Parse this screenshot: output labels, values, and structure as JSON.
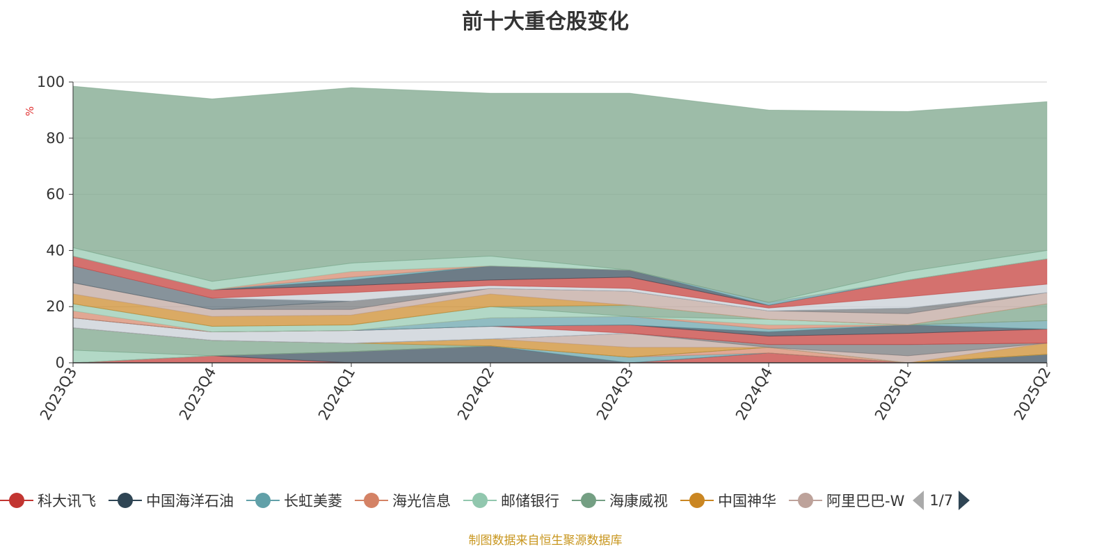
{
  "title": "前十大重仓股变化",
  "footer": "制图数据来自恒生聚源数据库",
  "legend_page": "1/7",
  "chart_data": {
    "type": "area",
    "stacked": true,
    "title": "前十大重仓股变化",
    "ylabel": "%",
    "ylim": [
      0,
      100
    ],
    "yticks": [
      "0",
      "20",
      "40",
      "60",
      "80",
      "100"
    ],
    "categories": [
      "2023Q3",
      "2023Q4",
      "2024Q1",
      "2024Q2",
      "2024Q3",
      "2024Q4",
      "2025Q1",
      "2025Q2"
    ],
    "legend_position": "bottom",
    "grid": true,
    "colors": [
      "#c23531",
      "#2f4554",
      "#61a0a8",
      "#d48265",
      "#91c7ae",
      "#749f83",
      "#ca8622",
      "#bda29a",
      "#6e7074",
      "#546570",
      "#c4ccd3"
    ],
    "series": [
      {
        "name": "科大讯飞",
        "values": [
          0,
          2.5,
          0,
          0,
          0,
          3.5,
          0,
          0
        ]
      },
      {
        "name": "中国海洋石油",
        "values": [
          0,
          0,
          4,
          6,
          0,
          0,
          0,
          3
        ]
      },
      {
        "name": "长虹美菱",
        "values": [
          0,
          0,
          0,
          0,
          2,
          0,
          0,
          0
        ]
      },
      {
        "name": "海光信息",
        "values": [
          0,
          0,
          0,
          0,
          0,
          2,
          0,
          0
        ]
      },
      {
        "name": "邮储银行",
        "values": [
          4.5,
          0,
          0,
          0,
          0,
          0,
          0,
          0
        ]
      },
      {
        "name": "海康威视",
        "values": [
          8,
          5.5,
          3,
          0,
          0,
          0,
          0,
          0
        ]
      },
      {
        "name": "中国神华",
        "values": [
          0,
          0,
          0,
          2.5,
          3.5,
          0,
          0,
          4
        ]
      },
      {
        "name": "阿里巴巴-W",
        "values": [
          0,
          0,
          0,
          0,
          5,
          0,
          2.5,
          0
        ]
      },
      {
        "values": [
          0,
          0,
          0,
          0,
          0,
          1,
          4,
          0
        ]
      },
      {
        "values": [
          0,
          0,
          0,
          0,
          0,
          0,
          0,
          0
        ]
      },
      {
        "values": [
          3.5,
          3,
          4.5,
          4.5,
          0,
          0,
          0,
          0
        ]
      },
      {
        "values": [
          0,
          0,
          0,
          0,
          3,
          3,
          4,
          5
        ]
      },
      {
        "values": [
          0,
          0,
          0,
          0,
          0,
          1.5,
          3,
          0
        ]
      },
      {
        "values": [
          0,
          0,
          0,
          3,
          3,
          1,
          0,
          3
        ]
      },
      {
        "values": [
          2.5,
          0,
          0,
          0,
          0,
          1.5,
          0,
          0
        ]
      },
      {
        "values": [
          2.5,
          2,
          2,
          4,
          0,
          2,
          0,
          0
        ]
      },
      {
        "values": [
          0,
          0,
          0,
          0,
          4,
          0,
          0,
          6
        ]
      },
      {
        "values": [
          3.5,
          3.5,
          3.5,
          4.5,
          0,
          0,
          0,
          0
        ]
      },
      {
        "values": [
          4,
          2.5,
          2,
          2,
          5,
          3,
          4,
          4
        ]
      },
      {
        "values": [
          0,
          0,
          3,
          0,
          0,
          0,
          2,
          0
        ]
      },
      {
        "values": [
          6,
          4,
          0,
          0,
          0,
          0,
          0,
          0
        ]
      },
      {
        "values": [
          0,
          0,
          3,
          1,
          1,
          1,
          4,
          3
        ]
      },
      {
        "values": [
          3.5,
          3,
          2.5,
          2,
          4,
          1,
          6,
          9
        ]
      },
      {
        "values": [
          0,
          0,
          2,
          5,
          2.5,
          0,
          0,
          0
        ]
      },
      {
        "values": [
          0,
          0,
          1,
          0,
          0,
          1,
          0,
          0
        ]
      },
      {
        "values": [
          0,
          0,
          2,
          0,
          0,
          0,
          0,
          0
        ]
      },
      {
        "values": [
          3,
          3,
          3,
          3.5,
          0,
          0,
          3,
          3
        ]
      },
      {
        "values": [
          57.5,
          65,
          62.5,
          58,
          63,
          68.5,
          57,
          53
        ]
      }
    ]
  }
}
